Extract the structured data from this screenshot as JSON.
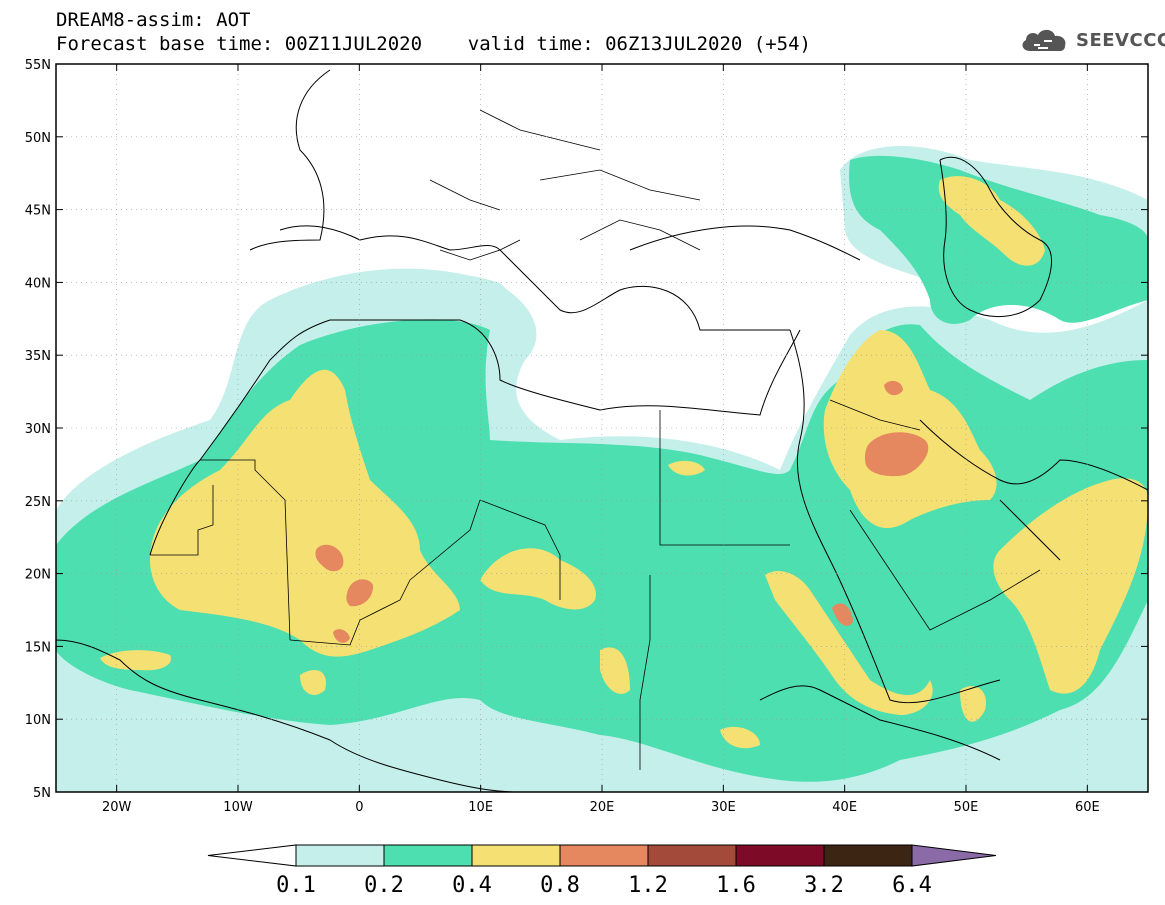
{
  "header": {
    "line1": "DREAM8-assim: AOT",
    "line2": "Forecast base time: 00Z11JUL2020    valid time: 06Z13JUL2020 (+54)",
    "logo_text": "SEEVCCC",
    "logo_icon": "cloud-icon"
  },
  "map": {
    "lon_range": [
      -25,
      65
    ],
    "lat_range": [
      5,
      55
    ],
    "x_ticks": [
      {
        "lon": -20,
        "label": "20W"
      },
      {
        "lon": -10,
        "label": "10W"
      },
      {
        "lon": 0,
        "label": "0"
      },
      {
        "lon": 10,
        "label": "10E"
      },
      {
        "lon": 20,
        "label": "20E"
      },
      {
        "lon": 30,
        "label": "30E"
      },
      {
        "lon": 40,
        "label": "40E"
      },
      {
        "lon": 50,
        "label": "50E"
      },
      {
        "lon": 60,
        "label": "60E"
      }
    ],
    "y_ticks": [
      {
        "lat": 55,
        "label": "55N"
      },
      {
        "lat": 50,
        "label": "50N"
      },
      {
        "lat": 45,
        "label": "45N"
      },
      {
        "lat": 40,
        "label": "40N"
      },
      {
        "lat": 35,
        "label": "35N"
      },
      {
        "lat": 30,
        "label": "30N"
      },
      {
        "lat": 25,
        "label": "25N"
      },
      {
        "lat": 20,
        "label": "20N"
      },
      {
        "lat": 15,
        "label": "15N"
      },
      {
        "lat": 10,
        "label": "10N"
      },
      {
        "lat": 5,
        "label": "5N"
      }
    ],
    "gridlines": "dotted"
  },
  "colorbar": {
    "labels": [
      "0.1",
      "0.2",
      "0.4",
      "0.8",
      "1.2",
      "1.6",
      "3.2",
      "6.4"
    ],
    "colors": [
      "#ffffff",
      "#c4efea",
      "#4ddfb0",
      "#f5e073",
      "#e5875f",
      "#a34a3b",
      "#7d0a26",
      "#3d2514",
      "#8b6aa8"
    ]
  }
}
